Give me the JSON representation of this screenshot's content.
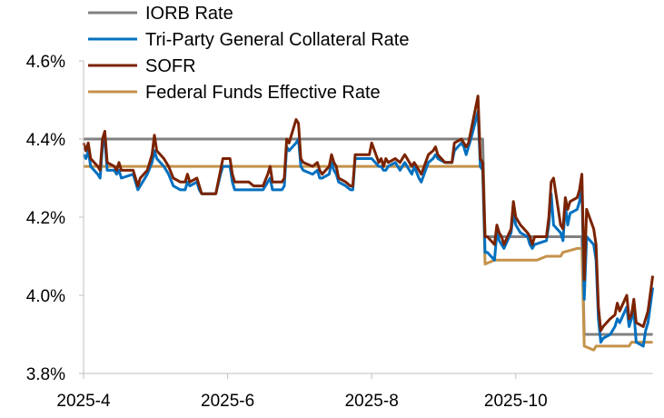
{
  "chart_data": {
    "type": "line",
    "title": "",
    "xlabel": "",
    "ylabel": "",
    "ylim": [
      3.8,
      4.6
    ],
    "xlim": [
      "2025-04-01",
      "2025-11-28"
    ],
    "y_ticks": [
      "3.8%",
      "4.0%",
      "4.2%",
      "4.4%",
      "4.6%"
    ],
    "y_tick_values": [
      3.8,
      4.0,
      4.2,
      4.4,
      4.6
    ],
    "x_ticks": [
      "2025-4",
      "2025-6",
      "2025-8",
      "2025-10"
    ],
    "x_tick_dates": [
      "2025-04-01",
      "2025-06-01",
      "2025-08-01",
      "2025-10-01"
    ],
    "grid": false,
    "legend_placement": "top",
    "series": [
      {
        "name": "IORB Rate",
        "color": "#808080",
        "x": [
          "2025-04-01",
          "2025-09-17",
          "2025-09-18",
          "2025-10-29",
          "2025-10-30",
          "2025-11-28"
        ],
        "values": [
          4.4,
          4.4,
          4.15,
          4.15,
          3.9,
          3.9
        ]
      },
      {
        "name": "Tri-Party General Collateral Rate",
        "color": "#0070C0",
        "x_ref": "dates",
        "values": [
          4.36,
          4.35,
          4.37,
          4.33,
          4.31,
          4.3,
          4.38,
          4.4,
          4.32,
          4.32,
          4.31,
          4.32,
          4.3,
          4.31,
          4.27,
          4.28,
          4.31,
          4.34,
          4.37,
          4.35,
          4.33,
          4.31,
          4.28,
          4.27,
          4.27,
          4.29,
          4.28,
          4.29,
          4.27,
          4.26,
          4.26,
          4.31,
          4.33,
          4.33,
          4.29,
          4.27,
          4.27,
          4.27,
          4.27,
          4.29,
          4.3,
          4.27,
          4.27,
          4.28,
          4.38,
          4.37,
          4.39,
          4.4,
          4.33,
          4.32,
          4.31,
          4.32,
          4.3,
          4.3,
          4.31,
          4.34,
          4.32,
          4.31,
          4.29,
          4.28,
          4.27,
          4.27,
          4.35,
          4.35,
          4.35,
          4.33,
          4.33,
          4.32,
          4.32,
          4.33,
          4.34,
          4.32,
          4.34,
          4.31,
          4.33,
          4.3,
          4.29,
          4.34,
          4.35,
          4.36,
          4.35,
          4.34,
          4.34,
          4.37,
          4.39,
          4.38,
          4.36,
          4.38,
          4.4,
          4.47,
          4.33,
          4.32,
          4.11,
          4.11,
          4.09,
          4.16,
          4.14,
          4.13,
          4.12,
          4.16,
          4.21,
          4.18,
          4.17,
          4.16,
          4.15,
          4.13,
          4.12,
          4.13,
          4.14,
          4.18,
          4.26,
          4.18,
          4.16,
          4.14,
          4.23,
          4.18,
          4.21,
          4.22,
          4.24,
          4.28,
          3.99,
          4.15,
          4.13,
          4.09,
          3.94,
          3.88,
          3.89,
          3.9,
          3.92,
          3.94,
          3.93,
          3.97,
          3.92,
          3.94,
          3.96,
          3.88,
          3.87,
          3.91,
          3.93,
          4.02
        ]
      },
      {
        "name": "SOFR",
        "color": "#7B2300",
        "x_ref": "dates",
        "values": [
          4.39,
          4.37,
          4.39,
          4.35,
          4.33,
          4.32,
          4.4,
          4.42,
          4.34,
          4.33,
          4.32,
          4.34,
          4.32,
          4.32,
          4.28,
          4.3,
          4.32,
          4.36,
          4.41,
          4.37,
          4.35,
          4.33,
          4.3,
          4.29,
          4.29,
          4.31,
          4.29,
          4.3,
          4.28,
          4.26,
          4.26,
          4.32,
          4.35,
          4.35,
          4.31,
          4.29,
          4.29,
          4.28,
          4.28,
          4.31,
          4.33,
          4.29,
          4.29,
          4.3,
          4.4,
          4.39,
          4.45,
          4.44,
          4.35,
          4.34,
          4.33,
          4.34,
          4.32,
          4.31,
          4.33,
          4.36,
          4.34,
          4.33,
          4.3,
          4.29,
          4.28,
          4.28,
          4.36,
          4.36,
          4.39,
          4.34,
          4.35,
          4.33,
          4.35,
          4.34,
          4.35,
          4.34,
          4.36,
          4.33,
          4.34,
          4.32,
          4.31,
          4.36,
          4.37,
          4.38,
          4.36,
          4.34,
          4.34,
          4.39,
          4.4,
          4.39,
          4.38,
          4.39,
          4.42,
          4.51,
          4.35,
          4.34,
          4.15,
          4.15,
          4.13,
          4.18,
          4.16,
          4.15,
          4.13,
          4.17,
          4.24,
          4.2,
          4.19,
          4.18,
          4.16,
          4.15,
          4.13,
          4.15,
          4.15,
          4.2,
          4.29,
          4.3,
          4.18,
          4.17,
          4.25,
          4.22,
          4.24,
          4.25,
          4.27,
          4.31,
          4.04,
          4.22,
          4.17,
          4.13,
          3.97,
          3.91,
          3.92,
          3.94,
          3.95,
          3.98,
          3.96,
          4.0,
          3.94,
          3.95,
          3.99,
          3.93,
          3.92,
          3.94,
          3.96,
          4.05
        ]
      },
      {
        "name": "Federal Funds Effective Rate",
        "color": "#C4924A",
        "x": [
          "2025-04-01",
          "2025-09-17",
          "2025-09-18",
          "2025-09-22",
          "2025-10-10",
          "2025-10-14",
          "2025-10-20",
          "2025-10-21",
          "2025-10-27",
          "2025-10-29",
          "2025-10-30",
          "2025-11-03",
          "2025-11-04",
          "2025-11-18",
          "2025-11-19",
          "2025-11-28"
        ],
        "values": [
          4.33,
          4.33,
          4.08,
          4.09,
          4.09,
          4.1,
          4.1,
          4.11,
          4.12,
          4.12,
          3.87,
          3.86,
          3.87,
          3.87,
          3.88,
          3.88
        ]
      }
    ],
    "dates": [
      "2025-04-01",
      "2025-04-02",
      "2025-04-03",
      "2025-04-04",
      "2025-04-07",
      "2025-04-08",
      "2025-04-09",
      "2025-04-10",
      "2025-04-11",
      "2025-04-14",
      "2025-04-15",
      "2025-04-16",
      "2025-04-17",
      "2025-04-22",
      "2025-04-24",
      "2025-04-25",
      "2025-04-28",
      "2025-04-30",
      "2025-05-01",
      "2025-05-02",
      "2025-05-05",
      "2025-05-07",
      "2025-05-09",
      "2025-05-12",
      "2025-05-14",
      "2025-05-15",
      "2025-05-16",
      "2025-05-19",
      "2025-05-20",
      "2025-05-21",
      "2025-05-27",
      "2025-05-29",
      "2025-05-30",
      "2025-06-02",
      "2025-06-03",
      "2025-06-04",
      "2025-06-10",
      "2025-06-12",
      "2025-06-16",
      "2025-06-18",
      "2025-06-19",
      "2025-06-20",
      "2025-06-24",
      "2025-06-25",
      "2025-06-26",
      "2025-06-27",
      "2025-06-30",
      "2025-07-01",
      "2025-07-02",
      "2025-07-03",
      "2025-07-07",
      "2025-07-09",
      "2025-07-10",
      "2025-07-11",
      "2025-07-14",
      "2025-07-15",
      "2025-07-16",
      "2025-07-17",
      "2025-07-18",
      "2025-07-21",
      "2025-07-23",
      "2025-07-24",
      "2025-07-25",
      "2025-07-31",
      "2025-08-01",
      "2025-08-04",
      "2025-08-05",
      "2025-08-06",
      "2025-08-07",
      "2025-08-08",
      "2025-08-11",
      "2025-08-13",
      "2025-08-15",
      "2025-08-18",
      "2025-08-19",
      "2025-08-21",
      "2025-08-22",
      "2025-08-25",
      "2025-08-27",
      "2025-08-28",
      "2025-08-29",
      "2025-09-01",
      "2025-09-04",
      "2025-09-05",
      "2025-09-08",
      "2025-09-09",
      "2025-09-10",
      "2025-09-11",
      "2025-09-12",
      "2025-09-15",
      "2025-09-16",
      "2025-09-17",
      "2025-09-18",
      "2025-09-19",
      "2025-09-22",
      "2025-09-23",
      "2025-09-24",
      "2025-09-25",
      "2025-09-26",
      "2025-09-29",
      "2025-09-30",
      "2025-10-01",
      "2025-10-02",
      "2025-10-03",
      "2025-10-06",
      "2025-10-07",
      "2025-10-08",
      "2025-10-09",
      "2025-10-14",
      "2025-10-15",
      "2025-10-16",
      "2025-10-17",
      "2025-10-20",
      "2025-10-21",
      "2025-10-22",
      "2025-10-23",
      "2025-10-24",
      "2025-10-27",
      "2025-10-28",
      "2025-10-29",
      "2025-10-30",
      "2025-10-31",
      "2025-11-03",
      "2025-11-04",
      "2025-11-05",
      "2025-11-06",
      "2025-11-07",
      "2025-11-10",
      "2025-11-12",
      "2025-11-13",
      "2025-11-14",
      "2025-11-17",
      "2025-11-18",
      "2025-11-19",
      "2025-11-20",
      "2025-11-21",
      "2025-11-24",
      "2025-11-25",
      "2025-11-26",
      "2025-11-28"
    ]
  }
}
